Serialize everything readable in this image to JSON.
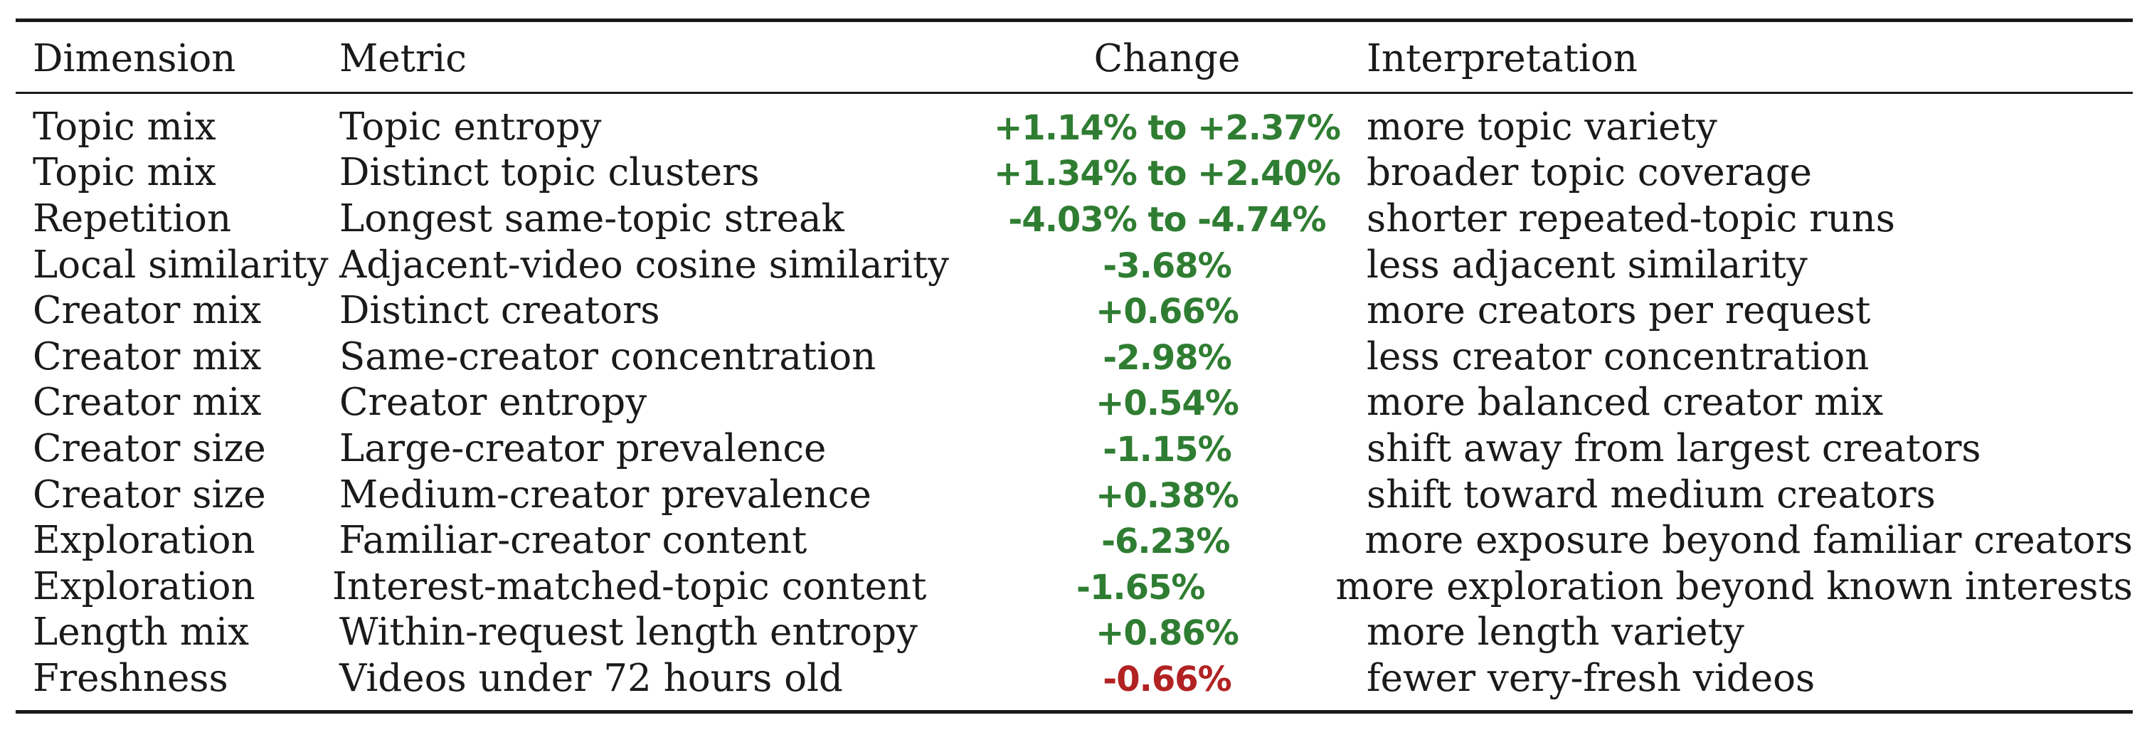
{
  "table": {
    "headers": {
      "dimension": "Dimension",
      "metric": "Metric",
      "change": "Change",
      "interpretation": "Interpretation"
    },
    "rows": [
      {
        "dimension": "Topic mix",
        "metric": "Topic entropy",
        "change": "+1.14% to +2.37%",
        "interpretation": "more topic variety",
        "tone": "good"
      },
      {
        "dimension": "Topic mix",
        "metric": "Distinct topic clusters",
        "change": "+1.34% to +2.40%",
        "interpretation": "broader topic coverage",
        "tone": "good"
      },
      {
        "dimension": "Repetition",
        "metric": "Longest same-topic streak",
        "change": "-4.03% to -4.74%",
        "interpretation": "shorter repeated-topic runs",
        "tone": "good"
      },
      {
        "dimension": "Local similarity",
        "metric": "Adjacent-video cosine similarity",
        "change": "-3.68%",
        "interpretation": "less adjacent similarity",
        "tone": "good"
      },
      {
        "dimension": "Creator mix",
        "metric": "Distinct creators",
        "change": "+0.66%",
        "interpretation": "more creators per request",
        "tone": "good"
      },
      {
        "dimension": "Creator mix",
        "metric": "Same-creator concentration",
        "change": "-2.98%",
        "interpretation": "less creator concentration",
        "tone": "good"
      },
      {
        "dimension": "Creator mix",
        "metric": "Creator entropy",
        "change": "+0.54%",
        "interpretation": "more balanced creator mix",
        "tone": "good"
      },
      {
        "dimension": "Creator size",
        "metric": "Large-creator prevalence",
        "change": "-1.15%",
        "interpretation": "shift away from largest creators",
        "tone": "good"
      },
      {
        "dimension": "Creator size",
        "metric": "Medium-creator prevalence",
        "change": "+0.38%",
        "interpretation": "shift toward medium creators",
        "tone": "good"
      },
      {
        "dimension": "Exploration",
        "metric": "Familiar-creator content",
        "change": "-6.23%",
        "interpretation": "more exposure beyond familiar creators",
        "tone": "good"
      },
      {
        "dimension": "Exploration",
        "metric": "Interest-matched-topic content",
        "change": "-1.65%",
        "interpretation": "more exploration beyond known interests",
        "tone": "good"
      },
      {
        "dimension": "Length mix",
        "metric": "Within-request length entropy",
        "change": "+0.86%",
        "interpretation": "more length variety",
        "tone": "good"
      },
      {
        "dimension": "Freshness",
        "metric": "Videos under 72 hours old",
        "change": "-0.66%",
        "interpretation": "fewer very-fresh videos",
        "tone": "bad"
      }
    ]
  },
  "colors": {
    "positive_green": "#2f7d32",
    "negative_red": "#b22222",
    "text": "#1a1a1a"
  }
}
